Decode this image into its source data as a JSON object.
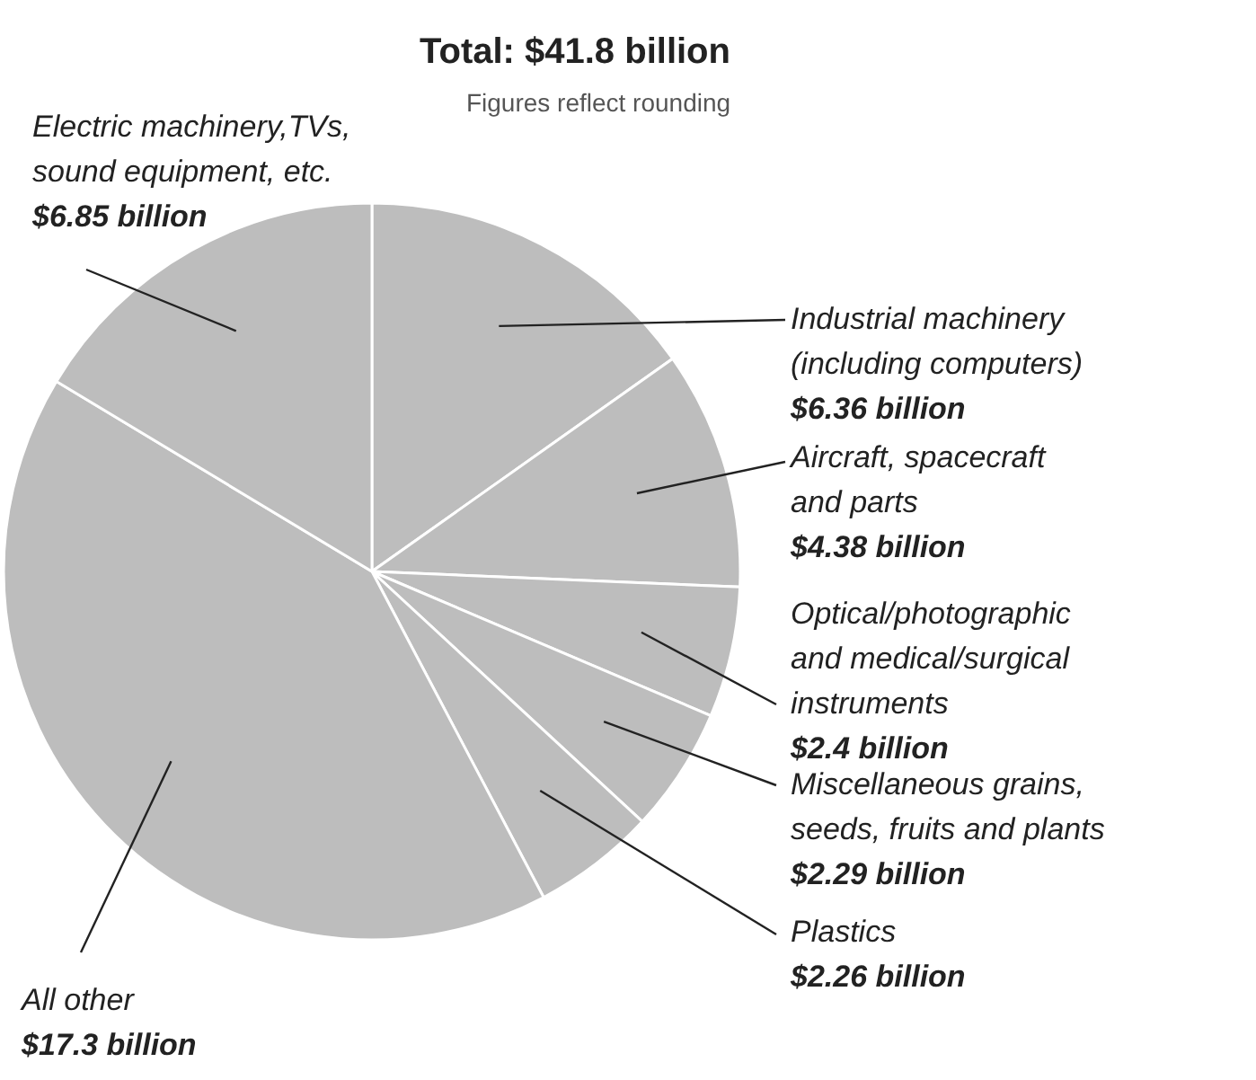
{
  "chart_data": {
    "type": "pie",
    "title": "Total: $41.8 billion",
    "subtitle": "Figures reflect rounding",
    "categories": [
      "Industrial machinery\n(including computers)",
      "Aircraft, spacecraft\nand parts",
      "Optical/photographic\nand medical/surgical\ninstruments",
      "Miscellaneous grains,\nseeds, fruits and plants",
      "Plastics",
      "All other",
      "Electric machinery,TVs,\nsound equipment, etc."
    ],
    "values": [
      6.36,
      4.38,
      2.4,
      2.29,
      2.26,
      17.3,
      6.85
    ],
    "colors": [
      "#bdbdbd",
      "#bdbdbd",
      "#bdbdbd",
      "#bdbdbd",
      "#bdbdbd",
      "#bdbdbd",
      "#bdbdbd"
    ],
    "value_labels": [
      "$6.36 billion",
      "$4.38 billion",
      "$2.4 billion",
      "$2.29 billion",
      "$2.26 billion",
      "$17.3 billion",
      "$6.85 billion"
    ]
  }
}
